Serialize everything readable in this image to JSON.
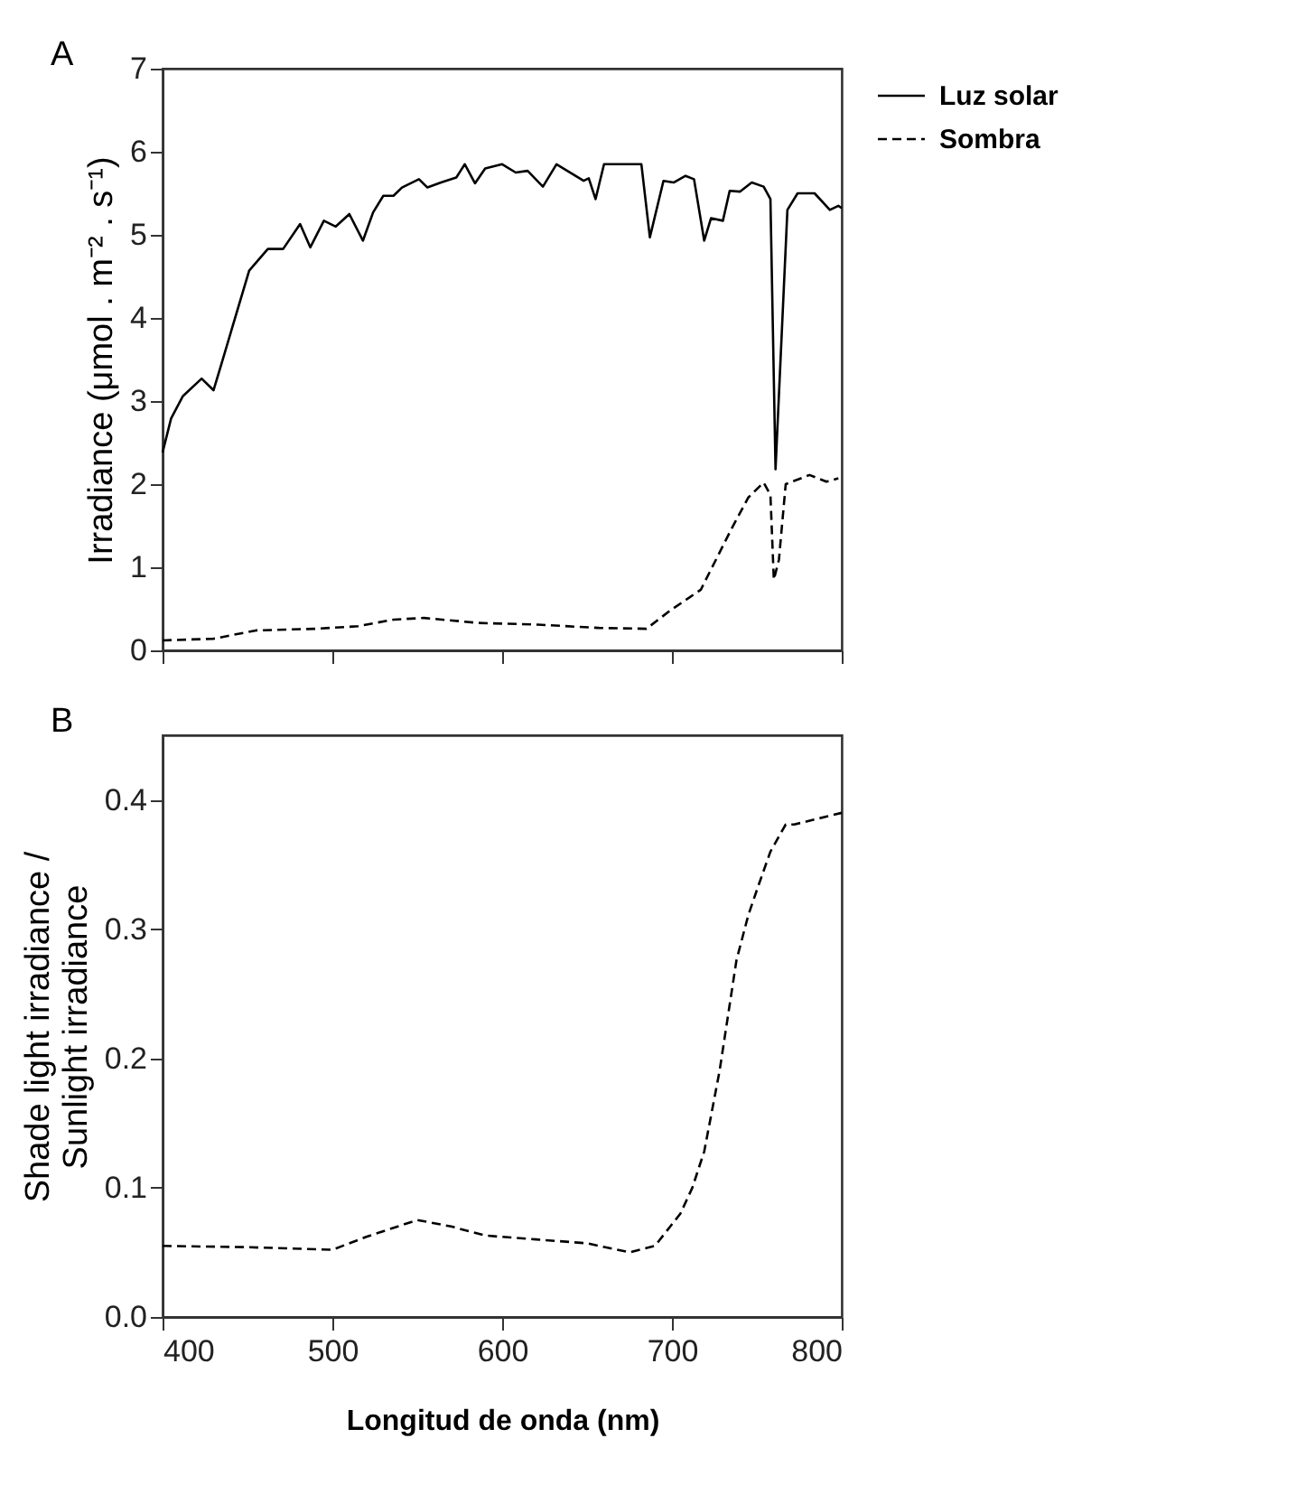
{
  "chart_data": [
    {
      "type": "line",
      "ylabel": "Irradiance (μmol . m⁻² . s⁻¹)",
      "annotations": [
        "A"
      ],
      "xlim": [
        400,
        800
      ],
      "xticks": [
        {
          "value": 400,
          "label": null
        },
        {
          "value": 500,
          "label": null
        },
        {
          "value": 600,
          "label": null
        },
        {
          "value": 700,
          "label": null
        },
        {
          "value": 800,
          "label": null
        }
      ],
      "ylim": [
        0,
        7
      ],
      "yticks": [
        0,
        1,
        2,
        3,
        4,
        5,
        6,
        7
      ],
      "tick_labels": "y",
      "grid": false,
      "legend": "top right",
      "series": [
        {
          "name": "Luz solar",
          "color": "#000000",
          "line_style": "solid",
          "x": [
            400,
            405,
            412,
            423,
            430,
            435,
            451,
            462,
            471,
            481,
            487,
            495,
            502,
            510,
            518,
            524,
            530,
            536,
            541,
            551,
            556,
            564,
            573,
            578,
            584,
            590,
            600,
            608,
            615,
            624,
            632,
            648,
            651,
            655,
            660,
            682,
            687,
            695,
            701,
            708,
            713,
            719,
            723,
            730,
            734,
            740,
            747,
            754,
            758,
            761,
            768,
            774,
            784,
            793,
            798,
            800
          ],
          "values": [
            2.38,
            2.79,
            3.06,
            3.27,
            3.13,
            3.47,
            4.57,
            4.83,
            4.83,
            5.13,
            4.85,
            5.17,
            5.1,
            5.25,
            4.93,
            5.27,
            5.47,
            5.47,
            5.57,
            5.67,
            5.57,
            5.63,
            5.69,
            5.85,
            5.62,
            5.8,
            5.85,
            5.75,
            5.77,
            5.58,
            5.85,
            5.65,
            5.68,
            5.43,
            5.85,
            5.85,
            4.97,
            5.65,
            5.63,
            5.71,
            5.67,
            4.93,
            5.2,
            5.17,
            5.53,
            5.52,
            5.63,
            5.58,
            5.43,
            2.18,
            5.3,
            5.5,
            5.5,
            5.3,
            5.35,
            5.32
          ]
        },
        {
          "name": "Sombra",
          "color": "#000000",
          "line_style": "dashed",
          "x": [
            400,
            430,
            455,
            490,
            515,
            536,
            554,
            586,
            621,
            657,
            685,
            699,
            717,
            735,
            745,
            754,
            758,
            760,
            763,
            767,
            781,
            791,
            798
          ],
          "values": [
            0.12,
            0.14,
            0.24,
            0.26,
            0.29,
            0.37,
            0.39,
            0.33,
            0.31,
            0.27,
            0.26,
            0.48,
            0.73,
            1.46,
            1.84,
            2.02,
            1.87,
            0.85,
            1.09,
            2.0,
            2.11,
            2.03,
            2.07
          ]
        }
      ]
    },
    {
      "type": "line",
      "ylabel": "Shade light irradiance / Sunlight irradiance",
      "xlabel": "Longitud de onda (nm)",
      "annotations": [
        "B"
      ],
      "xlim": [
        400,
        800
      ],
      "xticks": [
        400,
        500,
        600,
        700,
        800
      ],
      "ylim": [
        0,
        0.45
      ],
      "yticks": [
        {
          "value": 0,
          "label": "0.0"
        },
        0.1,
        0.2,
        0.3,
        0.4
      ],
      "grid": false,
      "series": [
        {
          "color": "#000000",
          "line_style": "dashed",
          "x": [
            400,
            450,
            500,
            520,
            550,
            570,
            590,
            620,
            650,
            675,
            690,
            705,
            712,
            719,
            728,
            738,
            745,
            751,
            758,
            767,
            772,
            800
          ],
          "values": [
            0.055,
            0.054,
            0.052,
            0.062,
            0.075,
            0.07,
            0.063,
            0.06,
            0.057,
            0.05,
            0.055,
            0.08,
            0.1,
            0.128,
            0.19,
            0.276,
            0.311,
            0.334,
            0.36,
            0.381,
            0.381,
            0.39
          ]
        }
      ]
    }
  ]
}
